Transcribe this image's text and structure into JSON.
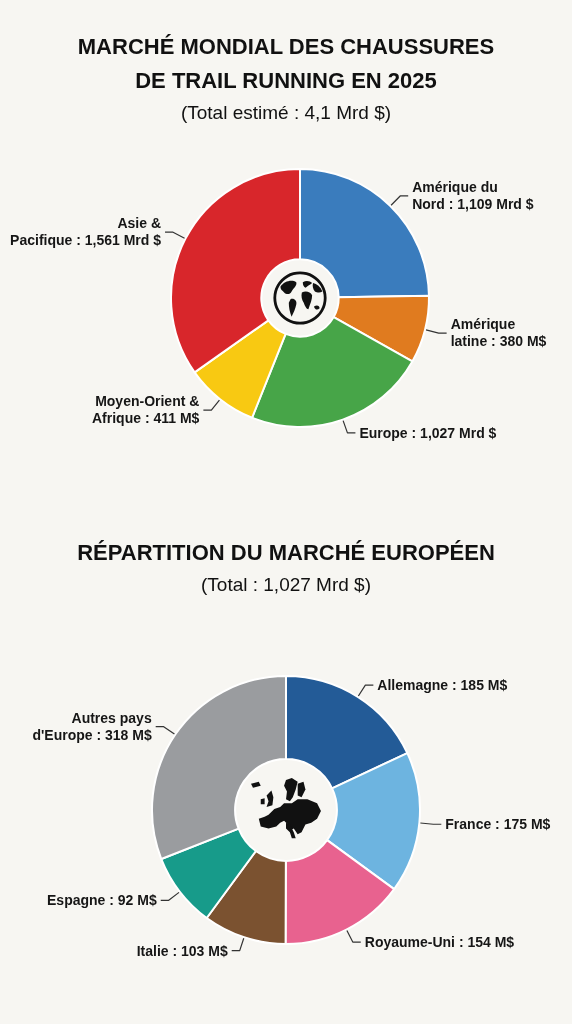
{
  "chart_data": [
    {
      "type": "donut",
      "title": "MARCHÉ MONDIAL DES CHAUSSURES DE TRAIL RUNNING EN 2025",
      "subtitle": "(Total estimé : 4,1 Mrd $)",
      "categories": [
        "Amérique du Nord",
        "Amérique latine",
        "Europe",
        "Moyen-Orient & Afrique",
        "Asie & Pacifique"
      ],
      "values": [
        1109,
        380,
        1027,
        411,
        1561
      ],
      "value_labels": [
        "1,109 Mrd $",
        "380 M$",
        "1,027 Mrd $",
        "411 M$",
        "1,561 Mrd $"
      ],
      "colors": [
        "#3a7cbd",
        "#e07b1f",
        "#47a548",
        "#f8c912",
        "#d8262b"
      ]
    },
    {
      "type": "donut",
      "title": "RÉPARTITION DU MARCHÉ EUROPÉEN",
      "subtitle": "(Total : 1,027 Mrd $)",
      "categories": [
        "Allemagne",
        "France",
        "Royaume-Uni",
        "Italie",
        "Espagne",
        "Autres pays d'Europe"
      ],
      "values": [
        185,
        175,
        154,
        103,
        92,
        318
      ],
      "value_labels": [
        "185 M$",
        "175 M$",
        "154 M$",
        "103 M$",
        "92 M$",
        "318 M$"
      ],
      "colors": [
        "#235b97",
        "#6db4e0",
        "#e8628f",
        "#7b5230",
        "#179b8a",
        "#9a9c9f"
      ]
    }
  ]
}
